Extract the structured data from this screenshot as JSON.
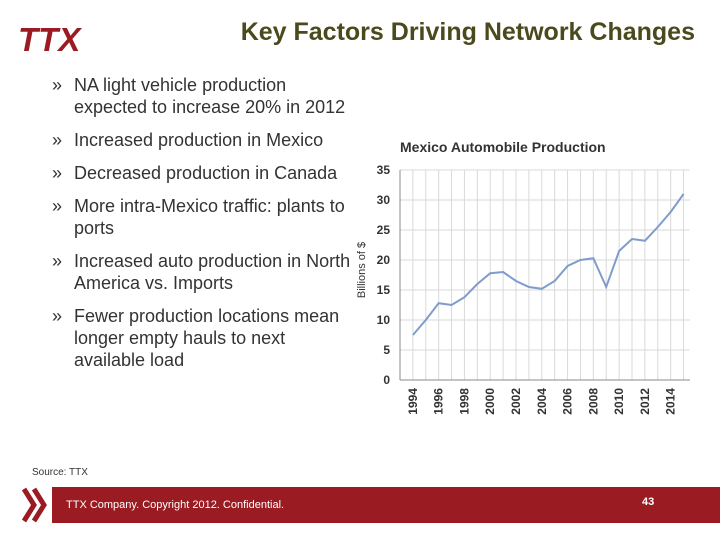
{
  "header": {
    "logo_text": "TTX",
    "title": "Key Factors Driving Network Changes"
  },
  "bullets": [
    "NA light vehicle production expected to increase 20% in 2012",
    "Increased production in Mexico",
    "Decreased production in Canada",
    "More intra-Mexico traffic: plants to ports",
    "Increased auto production in North America vs. Imports",
    "Fewer production locations mean longer empty hauls to next available load"
  ],
  "bullet_glyph": "»",
  "source": "Source: TTX",
  "footer": {
    "text": "TTX Company. Copyright 2012. Confidential.",
    "page_number": "43"
  },
  "colors": {
    "brand_red": "#9b1b22",
    "title": "#4a4a1e",
    "series_line": "#7f9ccb"
  },
  "chart_data": {
    "type": "line",
    "title": "Mexico Automobile Production",
    "xlabel": "",
    "ylabel": "Billions of $",
    "ylim": [
      0,
      35
    ],
    "yticks": [
      0,
      5,
      10,
      15,
      20,
      25,
      30,
      35
    ],
    "xticks": [
      "1994",
      "1996",
      "1998",
      "2000",
      "2002",
      "2004",
      "2006",
      "2008",
      "2010",
      "2012",
      "2014"
    ],
    "grid": true,
    "series": [
      {
        "name": "Mexico Automobile Production",
        "x": [
          1994,
          1995,
          1996,
          1997,
          1998,
          1999,
          2000,
          2001,
          2002,
          2003,
          2004,
          2005,
          2006,
          2007,
          2008,
          2009,
          2010,
          2011,
          2012,
          2013,
          2014,
          2015
        ],
        "values": [
          7.5,
          10,
          12.8,
          12.5,
          13.8,
          16,
          17.8,
          18,
          16.5,
          15.5,
          15.2,
          16.5,
          19,
          20,
          20.3,
          15.5,
          21.5,
          23.5,
          23.2,
          25.5,
          28,
          31
        ]
      }
    ]
  }
}
